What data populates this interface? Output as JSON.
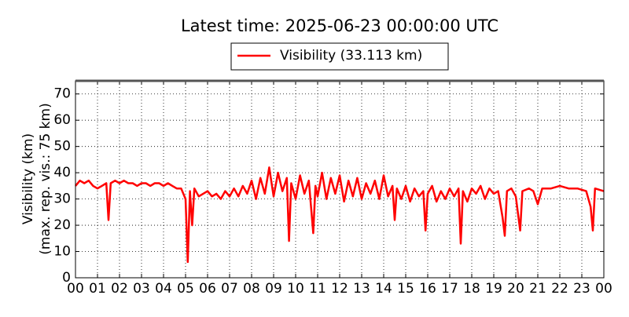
{
  "chart_data": {
    "type": "line",
    "title": "Latest time: 2025-06-23 00:00:00 UTC",
    "y_label": [
      "Visibility (km)",
      "(max. rep. vis.: 75 km)"
    ],
    "xlim": [
      0,
      24
    ],
    "ylim": [
      0,
      75
    ],
    "yticks": [
      0,
      10,
      20,
      30,
      40,
      50,
      60,
      70
    ],
    "xticks": [
      {
        "value": 0,
        "label": "00"
      },
      {
        "value": 1,
        "label": "01"
      },
      {
        "value": 2,
        "label": "02"
      },
      {
        "value": 3,
        "label": "03"
      },
      {
        "value": 4,
        "label": "04"
      },
      {
        "value": 5,
        "label": "05"
      },
      {
        "value": 6,
        "label": "06"
      },
      {
        "value": 7,
        "label": "07"
      },
      {
        "value": 8,
        "label": "08"
      },
      {
        "value": 9,
        "label": "09"
      },
      {
        "value": 10,
        "label": "10"
      },
      {
        "value": 11,
        "label": "11"
      },
      {
        "value": 12,
        "label": "12"
      },
      {
        "value": 13,
        "label": "13"
      },
      {
        "value": 14,
        "label": "14"
      },
      {
        "value": 15,
        "label": "15"
      },
      {
        "value": 16,
        "label": "16"
      },
      {
        "value": 17,
        "label": "17"
      },
      {
        "value": 18,
        "label": "18"
      },
      {
        "value": 19,
        "label": "19"
      },
      {
        "value": 20,
        "label": "20"
      },
      {
        "value": 21,
        "label": "21"
      },
      {
        "value": 22,
        "label": "22"
      },
      {
        "value": 23,
        "label": "23"
      },
      {
        "value": 24,
        "label": "00"
      }
    ],
    "grid": true,
    "x": [
      0,
      0.2,
      0.4,
      0.6,
      0.8,
      1.0,
      1.2,
      1.4,
      1.5,
      1.6,
      1.8,
      2.0,
      2.2,
      2.4,
      2.6,
      2.8,
      3.0,
      3.2,
      3.4,
      3.6,
      3.8,
      4.0,
      4.2,
      4.4,
      4.6,
      4.8,
      5.0,
      5.1,
      5.2,
      5.3,
      5.4,
      5.6,
      5.8,
      6.0,
      6.2,
      6.4,
      6.6,
      6.8,
      7.0,
      7.2,
      7.4,
      7.6,
      7.8,
      8.0,
      8.2,
      8.4,
      8.6,
      8.8,
      9.0,
      9.2,
      9.4,
      9.6,
      9.7,
      9.8,
      10.0,
      10.2,
      10.4,
      10.6,
      10.8,
      10.9,
      11.0,
      11.2,
      11.4,
      11.6,
      11.8,
      12.0,
      12.2,
      12.4,
      12.6,
      12.8,
      13.0,
      13.2,
      13.4,
      13.6,
      13.8,
      14.0,
      14.2,
      14.4,
      14.5,
      14.6,
      14.8,
      15.0,
      15.2,
      15.4,
      15.6,
      15.8,
      15.9,
      16.0,
      16.2,
      16.4,
      16.6,
      16.8,
      17.0,
      17.2,
      17.4,
      17.5,
      17.6,
      17.8,
      18.0,
      18.2,
      18.4,
      18.6,
      18.8,
      19.0,
      19.2,
      19.4,
      19.5,
      19.6,
      19.8,
      20.0,
      20.2,
      20.3,
      20.6,
      20.8,
      21.0,
      21.2,
      21.6,
      22.0,
      22.4,
      22.8,
      23.2,
      23.4,
      23.5,
      23.6,
      24.0
    ],
    "series": [
      {
        "name": "Visibility (33.113 km)",
        "color": "#ff0000",
        "values": [
          35,
          37,
          36,
          37,
          35,
          34,
          35,
          36,
          22,
          36,
          37,
          36,
          37,
          36,
          36,
          35,
          36,
          36,
          35,
          36,
          36,
          35,
          36,
          35,
          34,
          34,
          30,
          6,
          33,
          20,
          34,
          31,
          32,
          33,
          31,
          32,
          30,
          33,
          31,
          34,
          31,
          35,
          32,
          37,
          30,
          38,
          32,
          42,
          31,
          40,
          33,
          38,
          14,
          36,
          30,
          39,
          32,
          37,
          17,
          35,
          31,
          40,
          30,
          38,
          32,
          39,
          29,
          37,
          31,
          38,
          30,
          36,
          32,
          37,
          30,
          39,
          31,
          35,
          22,
          34,
          30,
          35,
          29,
          34,
          31,
          33,
          18,
          32,
          35,
          29,
          33,
          30,
          34,
          31,
          34,
          13,
          33,
          29,
          34,
          32,
          35,
          30,
          34,
          32,
          33,
          23,
          16,
          33,
          34,
          31,
          18,
          33,
          34,
          33,
          28,
          34,
          34,
          35,
          34,
          34,
          33,
          27,
          18,
          34,
          33
        ]
      }
    ]
  }
}
